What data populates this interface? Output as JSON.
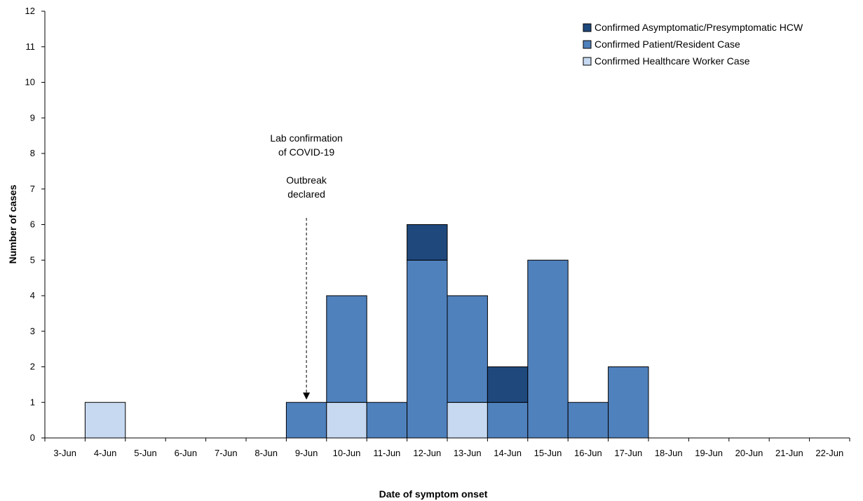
{
  "chart_data": {
    "type": "bar",
    "stacked": true,
    "title": "",
    "xlabel": "Date of symptom onset",
    "ylabel": "Number of cases",
    "ylim": [
      0,
      12
    ],
    "yticks": [
      0,
      1,
      2,
      3,
      4,
      5,
      6,
      7,
      8,
      9,
      10,
      11,
      12
    ],
    "grid": false,
    "legend_position": "top-right",
    "categories": [
      "3-Jun",
      "4-Jun",
      "5-Jun",
      "6-Jun",
      "7-Jun",
      "8-Jun",
      "9-Jun",
      "10-Jun",
      "11-Jun",
      "12-Jun",
      "13-Jun",
      "14-Jun",
      "15-Jun",
      "16-Jun",
      "17-Jun",
      "18-Jun",
      "19-Jun",
      "20-Jun",
      "21-Jun",
      "22-Jun"
    ],
    "series": [
      {
        "name": "Confirmed Healthcare Worker Case",
        "color": "#c6d9f1",
        "values": [
          0,
          1,
          0,
          0,
          0,
          0,
          0,
          1,
          0,
          0,
          1,
          0,
          0,
          0,
          0,
          0,
          0,
          0,
          0,
          0
        ]
      },
      {
        "name": "Confirmed Patient/Resident Case",
        "color": "#4f81bd",
        "values": [
          0,
          0,
          0,
          0,
          0,
          0,
          1,
          3,
          1,
          5,
          3,
          1,
          5,
          1,
          2,
          0,
          0,
          0,
          0,
          0
        ]
      },
      {
        "name": "Confirmed Asymptomatic/Presymptomatic HCW",
        "color": "#1f497d",
        "values": [
          0,
          0,
          0,
          0,
          0,
          0,
          0,
          0,
          0,
          1,
          0,
          1,
          0,
          0,
          0,
          0,
          0,
          0,
          0,
          0
        ]
      }
    ],
    "legend_order": [
      2,
      1,
      0
    ],
    "annotations": [
      {
        "category": "9-Jun",
        "lines": [
          "Lab confirmation",
          "of COVID-19",
          "",
          "Outbreak",
          "declared"
        ],
        "arrow": "dashed-down"
      }
    ]
  }
}
